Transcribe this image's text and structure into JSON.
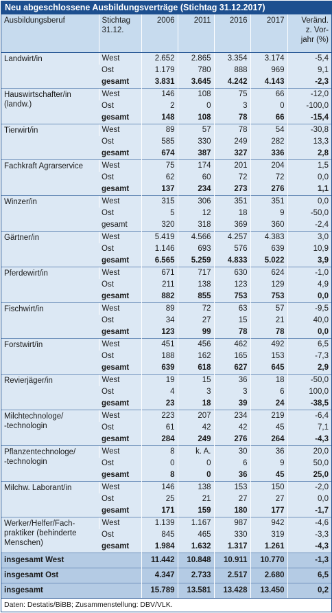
{
  "title": "Neu abgeschlossene Ausbildungsverträge (Stichtag 31.12.2017)",
  "header": [
    [
      "Ausbildungsberuf"
    ],
    [
      "Stichtag",
      "31.12."
    ],
    [
      "2006"
    ],
    [
      "2011"
    ],
    [
      "2016"
    ],
    [
      "2017"
    ],
    [
      "Veränd.",
      "z. Vor-",
      "jahr (%)"
    ]
  ],
  "groups": [
    {
      "name": [
        "Landwirt/in"
      ],
      "rows": [
        [
          "West",
          "2.652",
          "2.865",
          "3.354",
          "3.174",
          "-5,4"
        ],
        [
          "Ost",
          "1.179",
          "780",
          "888",
          "969",
          "9,1"
        ],
        [
          "gesamt",
          "3.831",
          "3.645",
          "4.242",
          "4.143",
          "-2,3"
        ]
      ]
    },
    {
      "name": [
        "Hauswirtschafter/in",
        "(landw.)"
      ],
      "rows": [
        [
          "West",
          "146",
          "108",
          "75",
          "66",
          "-12,0"
        ],
        [
          "Ost",
          "2",
          "0",
          "3",
          "0",
          "-100,0"
        ],
        [
          "gesamt",
          "148",
          "108",
          "78",
          "66",
          "-15,4"
        ]
      ]
    },
    {
      "name": [
        "Tierwirt/in"
      ],
      "rows": [
        [
          "West",
          "89",
          "57",
          "78",
          "54",
          "-30,8"
        ],
        [
          "Ost",
          "585",
          "330",
          "249",
          "282",
          "13,3"
        ],
        [
          "gesamt",
          "674",
          "387",
          "327",
          "336",
          "2,8"
        ]
      ]
    },
    {
      "name": [
        "Fachkraft Agrarservice"
      ],
      "rows": [
        [
          "West",
          "75",
          "174",
          "201",
          "204",
          "1,5"
        ],
        [
          "Ost",
          "62",
          "60",
          "72",
          "72",
          "0,0"
        ],
        [
          "gesamt",
          "137",
          "234",
          "273",
          "276",
          "1,1"
        ]
      ]
    },
    {
      "name": [
        "Winzer/in"
      ],
      "bold_total": false,
      "rows": [
        [
          "West",
          "315",
          "306",
          "351",
          "351",
          "0,0"
        ],
        [
          "Ost",
          "5",
          "12",
          "18",
          "9",
          "-50,0"
        ],
        [
          "gesamt",
          "320",
          "318",
          "369",
          "360",
          "-2,4"
        ]
      ]
    },
    {
      "name": [
        "Gärtner/in"
      ],
      "rows": [
        [
          "West",
          "5.419",
          "4.566",
          "4.257",
          "4.383",
          "3,0"
        ],
        [
          "Ost",
          "1.146",
          "693",
          "576",
          "639",
          "10,9"
        ],
        [
          "gesamt",
          "6.565",
          "5.259",
          "4.833",
          "5.022",
          "3,9"
        ]
      ]
    },
    {
      "name": [
        "Pferdewirt/in"
      ],
      "rows": [
        [
          "West",
          "671",
          "717",
          "630",
          "624",
          "-1,0"
        ],
        [
          "Ost",
          "211",
          "138",
          "123",
          "129",
          "4,9"
        ],
        [
          "gesamt",
          "882",
          "855",
          "753",
          "753",
          "0,0"
        ]
      ]
    },
    {
      "name": [
        "Fischwirt/in"
      ],
      "rows": [
        [
          "West",
          "89",
          "72",
          "63",
          "57",
          "-9,5"
        ],
        [
          "Ost",
          "34",
          "27",
          "15",
          "21",
          "40,0"
        ],
        [
          "gesamt",
          "123",
          "99",
          "78",
          "78",
          "0,0"
        ]
      ]
    },
    {
      "name": [
        "Forstwirt/in"
      ],
      "rows": [
        [
          "West",
          "451",
          "456",
          "462",
          "492",
          "6,5"
        ],
        [
          "Ost",
          "188",
          "162",
          "165",
          "153",
          "-7,3"
        ],
        [
          "gesamt",
          "639",
          "618",
          "627",
          "645",
          "2,9"
        ]
      ]
    },
    {
      "name": [
        "Revierjäger/in"
      ],
      "rows": [
        [
          "West",
          "19",
          "15",
          "36",
          "18",
          "-50,0"
        ],
        [
          "Ost",
          "4",
          "3",
          "3",
          "6",
          "100,0"
        ],
        [
          "gesamt",
          "23",
          "18",
          "39",
          "24",
          "-38,5"
        ]
      ]
    },
    {
      "name": [
        "Milchtechnologe/",
        "-technologin"
      ],
      "rows": [
        [
          "West",
          "223",
          "207",
          "234",
          "219",
          "-6,4"
        ],
        [
          "Ost",
          "61",
          "42",
          "42",
          "45",
          "7,1"
        ],
        [
          "gesamt",
          "284",
          "249",
          "276",
          "264",
          "-4,3"
        ]
      ]
    },
    {
      "name": [
        "Pflanzentechnologe/",
        "-technologin"
      ],
      "rows": [
        [
          "West",
          "8",
          "k. A.",
          "30",
          "36",
          "20,0"
        ],
        [
          "Ost",
          "0",
          "0",
          "6",
          "9",
          "50,0"
        ],
        [
          "gesamt",
          "8",
          "0",
          "36",
          "45",
          "25,0"
        ]
      ]
    },
    {
      "name": [
        "Milchw. Laborant/in"
      ],
      "rows": [
        [
          "West",
          "146",
          "138",
          "153",
          "150",
          "-2,0"
        ],
        [
          "Ost",
          "25",
          "21",
          "27",
          "27",
          "0,0"
        ],
        [
          "gesamt",
          "171",
          "159",
          "180",
          "177",
          "-1,7"
        ]
      ]
    },
    {
      "name": [
        "Werker/Helfer/Fach-",
        "praktiker (behinderte",
        "Menschen)"
      ],
      "rows": [
        [
          "West",
          "1.139",
          "1.167",
          "987",
          "942",
          "-4,6"
        ],
        [
          "Ost",
          "845",
          "465",
          "330",
          "319",
          "-3,3"
        ],
        [
          "gesamt",
          "1.984",
          "1.632",
          "1.317",
          "1.261",
          "-4,3"
        ]
      ]
    }
  ],
  "totals": [
    [
      "insgesamt West",
      "11.442",
      "10.848",
      "10.911",
      "10.770",
      "-1,3"
    ],
    [
      "insgesamt Ost",
      "4.347",
      "2.733",
      "2.517",
      "2.680",
      "6,5"
    ],
    [
      "insgesamt",
      "15.789",
      "13.581",
      "13.428",
      "13.450",
      "0,2"
    ]
  ],
  "footer": "Daten: Destatis/BiBB; Zusammenstellung: DBV/VLK."
}
